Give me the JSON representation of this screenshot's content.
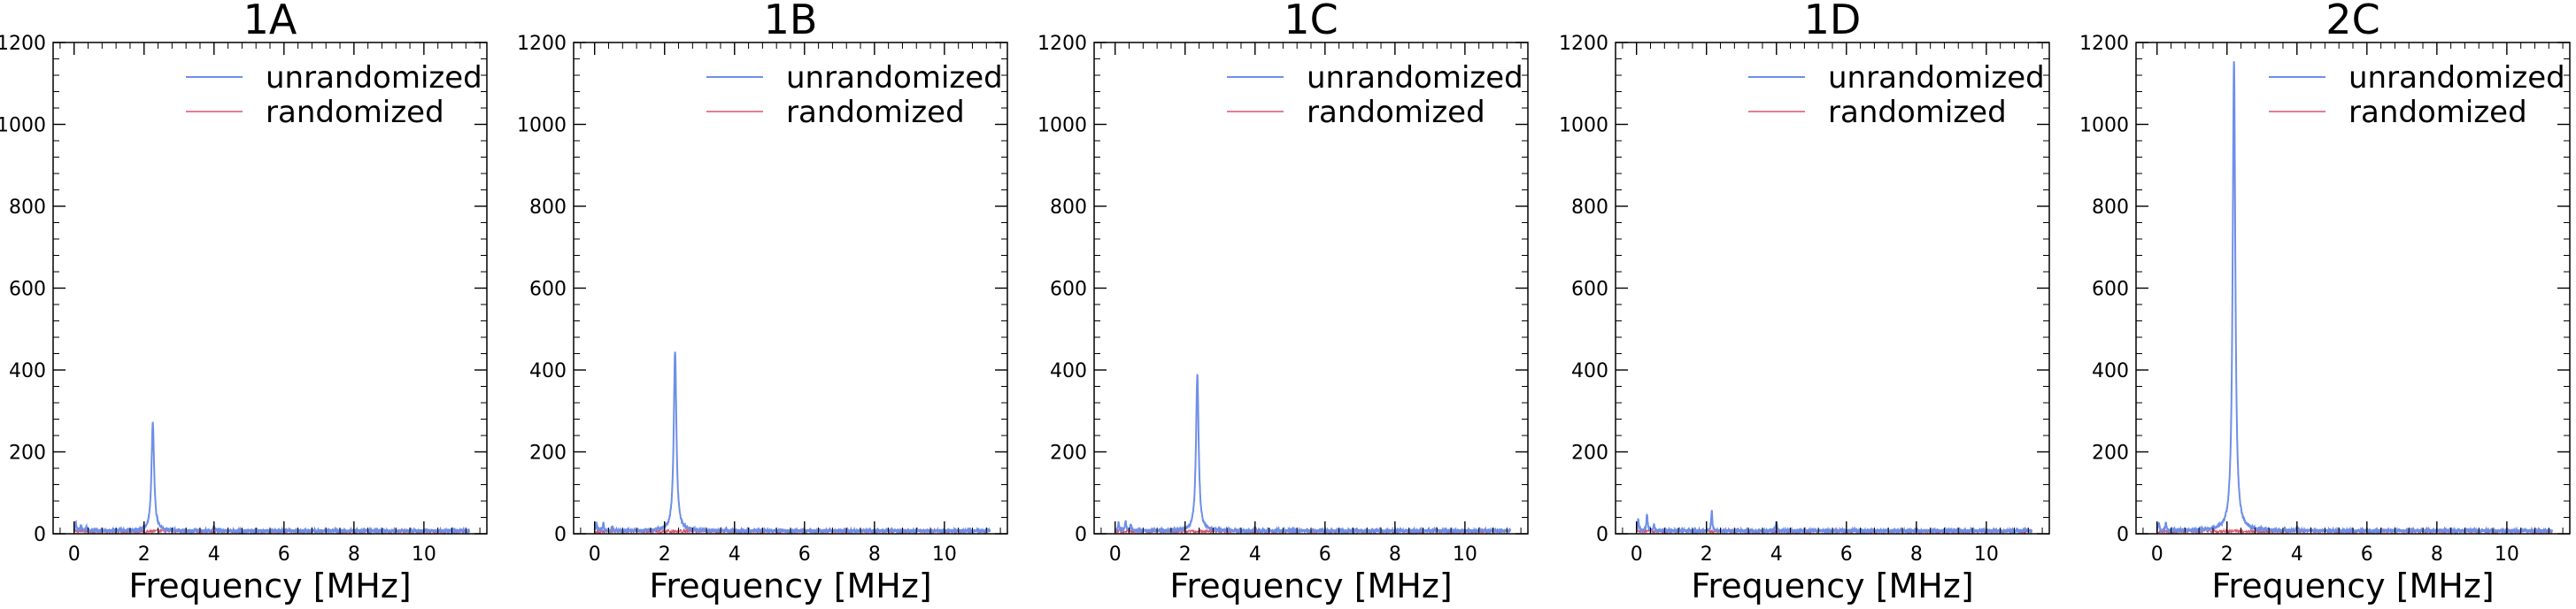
{
  "figure": {
    "panels": [
      "1A",
      "1B",
      "1C",
      "1D",
      "2C"
    ]
  },
  "colors": {
    "unrandomized": "#6f8fe8",
    "randomized": "#d9536b",
    "axis": "#000000"
  },
  "chart_data": [
    {
      "type": "line",
      "title": "1A",
      "xlabel": "Frequency [MHz]",
      "ylabel": "",
      "xlim": [
        -0.6,
        11.8
      ],
      "ylim": [
        0,
        1200
      ],
      "xticks": [
        0,
        2,
        4,
        6,
        8,
        10
      ],
      "yticks": [
        0,
        200,
        400,
        600,
        800,
        1000,
        1200
      ],
      "legend": "top-right",
      "grid": false,
      "series": [
        {
          "name": "unrandomized",
          "peaks": [
            [
              0.05,
              18
            ],
            [
              0.2,
              14
            ],
            [
              0.35,
              9
            ],
            [
              2.25,
              265
            ],
            [
              4.0,
              10
            ]
          ]
        },
        {
          "name": "randomized",
          "noise_level": 5
        }
      ]
    },
    {
      "type": "line",
      "title": "1B",
      "xlabel": "Frequency [MHz]",
      "ylabel": "",
      "xlim": [
        -0.6,
        11.8
      ],
      "ylim": [
        0,
        1200
      ],
      "xticks": [
        0,
        2,
        4,
        6,
        8,
        10
      ],
      "yticks": [
        0,
        200,
        400,
        600,
        800,
        1000,
        1200
      ],
      "legend": "top-right",
      "grid": false,
      "series": [
        {
          "name": "unrandomized",
          "peaks": [
            [
              0.05,
              20
            ],
            [
              0.25,
              18
            ],
            [
              0.5,
              10
            ],
            [
              2.3,
              440
            ]
          ]
        },
        {
          "name": "randomized",
          "noise_level": 5
        }
      ]
    },
    {
      "type": "line",
      "title": "1C",
      "xlabel": "Frequency [MHz]",
      "ylabel": "",
      "xlim": [
        -0.6,
        11.8
      ],
      "ylim": [
        0,
        1200
      ],
      "xticks": [
        0,
        2,
        4,
        6,
        8,
        10
      ],
      "yticks": [
        0,
        200,
        400,
        600,
        800,
        1000,
        1200
      ],
      "legend": "top-right",
      "grid": false,
      "series": [
        {
          "name": "unrandomized",
          "peaks": [
            [
              0.1,
              20
            ],
            [
              0.3,
              25
            ],
            [
              0.45,
              15
            ],
            [
              2.35,
              380
            ],
            [
              4.0,
              8
            ]
          ]
        },
        {
          "name": "randomized",
          "noise_level": 5
        }
      ]
    },
    {
      "type": "line",
      "title": "1D",
      "xlabel": "Frequency [MHz]",
      "ylabel": "",
      "xlim": [
        -0.6,
        11.8
      ],
      "ylim": [
        0,
        1200
      ],
      "xticks": [
        0,
        2,
        4,
        6,
        8,
        10
      ],
      "yticks": [
        0,
        200,
        400,
        600,
        800,
        1000,
        1200
      ],
      "legend": "top-right",
      "grid": false,
      "series": [
        {
          "name": "unrandomized",
          "peaks": [
            [
              0.05,
              30
            ],
            [
              0.3,
              40
            ],
            [
              0.5,
              15
            ],
            [
              2.15,
              48
            ],
            [
              4.0,
              22
            ]
          ]
        },
        {
          "name": "randomized",
          "noise_level": 5
        }
      ]
    },
    {
      "type": "line",
      "title": "2C",
      "xlabel": "Frequency [MHz]",
      "ylabel": "",
      "xlim": [
        -0.6,
        11.8
      ],
      "ylim": [
        0,
        1200
      ],
      "xticks": [
        0,
        2,
        4,
        6,
        8,
        10
      ],
      "yticks": [
        0,
        200,
        400,
        600,
        800,
        1000,
        1200
      ],
      "legend": "top-right",
      "grid": false,
      "series": [
        {
          "name": "unrandomized",
          "peaks": [
            [
              0.05,
              20
            ],
            [
              0.25,
              18
            ],
            [
              2.2,
              1150
            ],
            [
              4.0,
              8
            ]
          ]
        },
        {
          "name": "randomized",
          "noise_level": 5
        }
      ]
    }
  ]
}
